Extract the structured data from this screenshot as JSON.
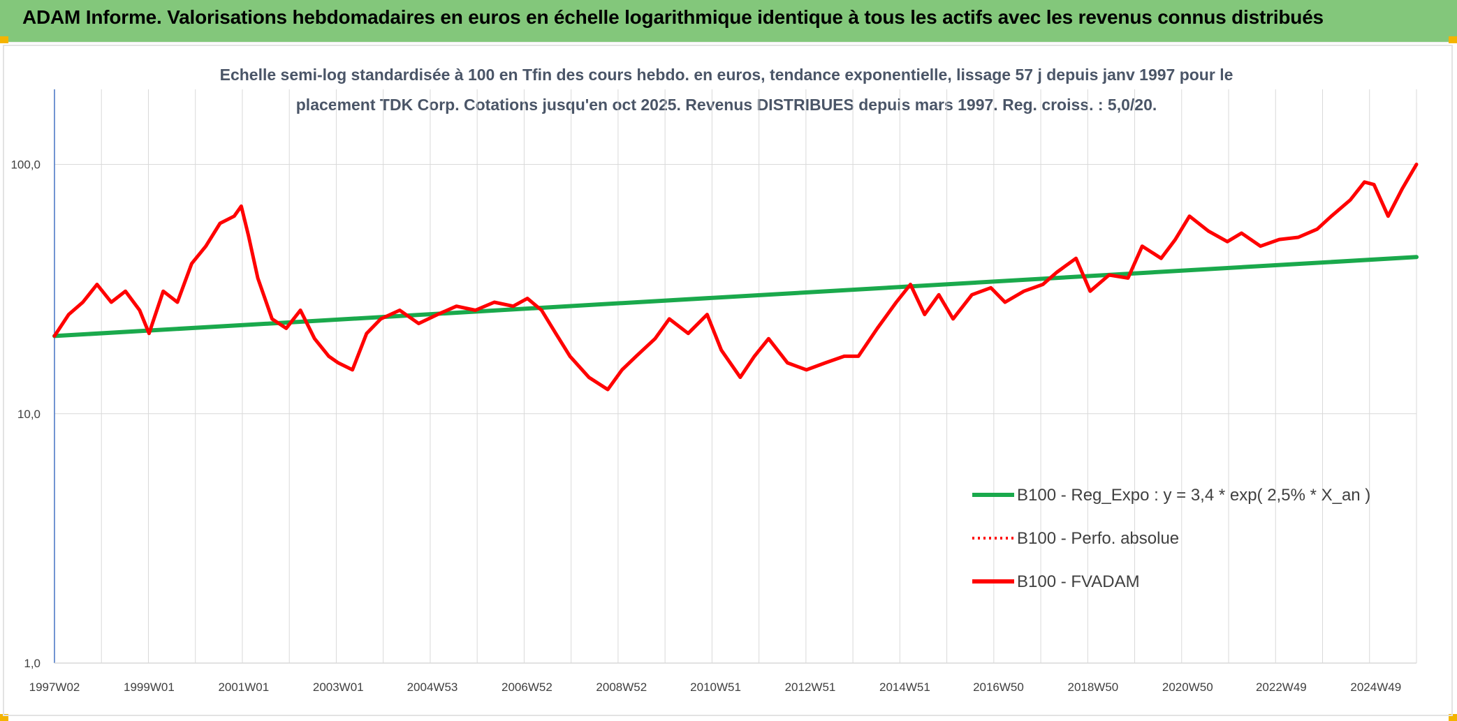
{
  "header": {
    "title": "ADAM Informe. Valorisations hebdomadaires en euros en échelle logarithmique identique à tous les actifs avec les revenus connus distribués"
  },
  "colors": {
    "banner": "#83c77b",
    "accent": "#f4b400",
    "regression": "#1aa94c",
    "fvadam": "#ff0000",
    "perfo": "#ff0000",
    "grid": "#d9d9d9"
  },
  "chart_data": {
    "type": "line",
    "title": "Echelle semi-log standardisée à 100 en Tfin des cours hebdo. en euros, tendance exponentielle, lissage 57 j depuis janv 1997 pour le placement TDK Corp. Cotations jusqu'en oct 2025. Revenus DISTRIBUES depuis mars 1997. Reg. croiss. : 5,0/20.",
    "title_lines": [
      "Echelle semi-log standardisée à 100 en Tfin des cours hebdo. en euros, tendance exponentielle, lissage 57 j depuis janv 1997 pour le",
      "placement TDK Corp. Cotations jusqu'en oct 2025. Revenus DISTRIBUES depuis mars 1997. Reg. croiss. : 5,0/20."
    ],
    "y_scale": "log",
    "ylim": [
      1,
      200
    ],
    "y_ticks": [
      {
        "value": 1,
        "label": "1,0"
      },
      {
        "value": 10,
        "label": "10,0"
      },
      {
        "value": 100,
        "label": "100,0"
      }
    ],
    "xlim": [
      1997.0,
      2025.8
    ],
    "x_ticks": [
      {
        "year": 1997.0,
        "label": "1997W02"
      },
      {
        "year": 1999.0,
        "label": "1999W01"
      },
      {
        "year": 2001.0,
        "label": "2001W01"
      },
      {
        "year": 2003.0,
        "label": "2003W01"
      },
      {
        "year": 2004.99,
        "label": "2004W53"
      },
      {
        "year": 2006.99,
        "label": "2006W52"
      },
      {
        "year": 2008.99,
        "label": "2008W52"
      },
      {
        "year": 2010.98,
        "label": "2010W51"
      },
      {
        "year": 2012.98,
        "label": "2012W51"
      },
      {
        "year": 2014.98,
        "label": "2014W51"
      },
      {
        "year": 2016.96,
        "label": "2016W50"
      },
      {
        "year": 2018.96,
        "label": "2018W50"
      },
      {
        "year": 2020.96,
        "label": "2020W50"
      },
      {
        "year": 2022.94,
        "label": "2022W49"
      },
      {
        "year": 2024.94,
        "label": "2024W49"
      }
    ],
    "legend_position": "bottom-right",
    "grid": true,
    "series": [
      {
        "name": "B100 - Reg_Expo : y = 3,4 * exp( 2,5% *  X_an )",
        "style": "solid",
        "color": "#1aa94c",
        "x": [
          1997.0,
          2025.8
        ],
        "y": [
          20.5,
          42.5
        ]
      },
      {
        "name": "B100 - Perfo. absolue",
        "style": "dotted",
        "color": "#ff0000",
        "x": [],
        "y": []
      },
      {
        "name": "B100 - FVADAM",
        "style": "solid",
        "color": "#ff0000",
        "x": [
          1997.0,
          1997.3,
          1997.6,
          1997.9,
          1998.2,
          1998.5,
          1998.8,
          1999.0,
          1999.3,
          1999.6,
          1999.9,
          2000.2,
          2000.5,
          2000.8,
          2000.95,
          2001.1,
          2001.3,
          2001.6,
          2001.9,
          2002.2,
          2002.5,
          2002.8,
          2003.0,
          2003.3,
          2003.6,
          2003.9,
          2004.3,
          2004.7,
          2005.1,
          2005.5,
          2005.9,
          2006.3,
          2006.7,
          2007.0,
          2007.3,
          2007.6,
          2007.9,
          2008.3,
          2008.7,
          2009.0,
          2009.3,
          2009.7,
          2010.0,
          2010.4,
          2010.8,
          2011.1,
          2011.5,
          2011.8,
          2012.1,
          2012.5,
          2012.9,
          2013.3,
          2013.7,
          2014.0,
          2014.4,
          2014.8,
          2015.1,
          2015.4,
          2015.7,
          2016.0,
          2016.4,
          2016.8,
          2017.1,
          2017.5,
          2017.9,
          2018.2,
          2018.6,
          2018.9,
          2019.3,
          2019.7,
          2020.0,
          2020.4,
          2020.7,
          2021.0,
          2021.4,
          2021.8,
          2022.1,
          2022.5,
          2022.9,
          2023.3,
          2023.7,
          2024.0,
          2024.4,
          2024.7,
          2024.9,
          2025.2,
          2025.5,
          2025.8
        ],
        "y": [
          20.5,
          25,
          28,
          33,
          28,
          31,
          26,
          21,
          31,
          28,
          40,
          47,
          58,
          62,
          68,
          52,
          35,
          24,
          22,
          26,
          20,
          17,
          16,
          15,
          21,
          24,
          26,
          23,
          25,
          27,
          26,
          28,
          27,
          29,
          26,
          21,
          17,
          14,
          12.5,
          15,
          17,
          20,
          24,
          21,
          25,
          18,
          14,
          17,
          20,
          16,
          15,
          16,
          17,
          17,
          22,
          28,
          33,
          25,
          30,
          24,
          30,
          32,
          28,
          31,
          33,
          37,
          42,
          31,
          36,
          35,
          47,
          42,
          50,
          62,
          54,
          49,
          53,
          47,
          50,
          51,
          55,
          62,
          72,
          85,
          83,
          62,
          80,
          100
        ]
      }
    ]
  }
}
